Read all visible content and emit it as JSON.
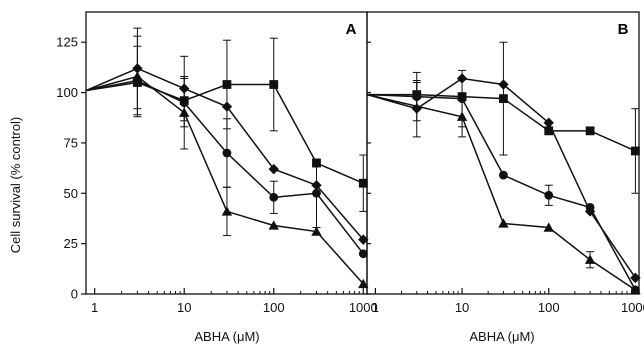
{
  "chart_data": [
    {
      "type": "line",
      "panel_label": "A",
      "xlabel": "ABHA (μM)",
      "ylabel": "Cell survival (% control)",
      "xscale": "log",
      "xlim": [
        0.8,
        1100
      ],
      "ylim": [
        0,
        140
      ],
      "xticks": [
        1,
        10,
        100,
        1000
      ],
      "xtick_labels": [
        "1",
        "10",
        "100",
        "1000"
      ],
      "yticks": [
        0,
        25,
        50,
        75,
        100,
        125
      ],
      "ytick_labels": [
        "0",
        "25",
        "50",
        "75",
        "100",
        "125"
      ],
      "grid": false,
      "series": [
        {
          "marker": "triangle",
          "x": [
            0.8,
            3,
            10,
            30,
            100,
            300,
            1000
          ],
          "y": [
            101,
            108,
            90,
            41,
            34,
            31,
            5
          ],
          "err": [
            0,
            20,
            18,
            12,
            0,
            0,
            0
          ]
        },
        {
          "marker": "circle",
          "x": [
            0.8,
            3,
            10,
            30,
            100,
            300,
            1000
          ],
          "y": [
            101,
            106,
            95,
            70,
            48,
            50,
            20
          ],
          "err": [
            0,
            17,
            12,
            17,
            8,
            17,
            0
          ]
        },
        {
          "marker": "diamond",
          "x": [
            0.8,
            3,
            10,
            30,
            100,
            300,
            1000
          ],
          "y": [
            101,
            112,
            102,
            93,
            62,
            54,
            27
          ],
          "err": [
            0,
            20,
            16,
            0,
            0,
            0,
            0
          ]
        },
        {
          "marker": "square",
          "x": [
            0.8,
            3,
            10,
            30,
            100,
            300,
            1000
          ],
          "y": [
            101,
            105,
            96,
            104,
            104,
            65,
            55
          ],
          "err": [
            0,
            0,
            0,
            22,
            23,
            0,
            14
          ]
        }
      ]
    },
    {
      "type": "line",
      "panel_label": "B",
      "xlabel": "ABHA (μM)",
      "ylabel": "",
      "xscale": "log",
      "xlim": [
        0.8,
        1100
      ],
      "ylim": [
        0,
        140
      ],
      "xticks": [
        1,
        10,
        100,
        1000
      ],
      "xtick_labels": [
        "1",
        "10",
        "100",
        "1000"
      ],
      "yticks": [
        0,
        25,
        50,
        75,
        100,
        125
      ],
      "ytick_labels": [],
      "grid": false,
      "series": [
        {
          "marker": "triangle",
          "x": [
            0.8,
            10,
            30,
            100,
            300,
            1000
          ],
          "y": [
            99,
            88,
            35,
            33,
            17,
            2
          ],
          "err": [
            0,
            10,
            0,
            0,
            4,
            0
          ]
        },
        {
          "marker": "circle",
          "x": [
            0.8,
            3,
            10,
            30,
            100,
            300,
            1000
          ],
          "y": [
            99,
            98,
            97,
            59,
            49,
            43,
            2
          ],
          "err": [
            0,
            12,
            14,
            0,
            5,
            0,
            0
          ]
        },
        {
          "marker": "diamond",
          "x": [
            0.8,
            3,
            10,
            30,
            100,
            300,
            1000
          ],
          "y": [
            99,
            92,
            107,
            104,
            85,
            41,
            8
          ],
          "err": [
            0,
            14,
            0,
            0,
            0,
            0,
            0
          ]
        },
        {
          "marker": "square",
          "x": [
            0.8,
            3,
            10,
            30,
            100,
            300,
            1000
          ],
          "y": [
            99,
            99,
            98,
            97,
            81,
            81,
            71
          ],
          "err": [
            0,
            6,
            0,
            28,
            0,
            0,
            21
          ]
        }
      ]
    }
  ]
}
